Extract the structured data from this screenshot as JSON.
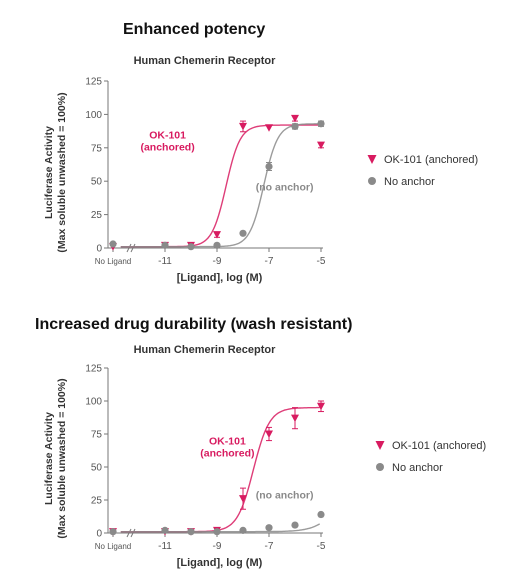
{
  "titles": {
    "top": "Enhanced potency",
    "bottom": "Increased drug durability (wash resistant)"
  },
  "chart_data": [
    {
      "type": "scatter",
      "title": "Human Chemerin Receptor",
      "xlabel": "[Ligand], log (M)",
      "ylabel_line1": "Luciferase Activity",
      "ylabel_line2": "(Max soluble unwashed = 100%)",
      "x_ticks": [
        "No Ligand",
        "-11",
        "-9",
        "-7",
        "-5"
      ],
      "y_ticks": [
        "0",
        "25",
        "50",
        "75",
        "100",
        "125"
      ],
      "ylim": [
        0,
        125
      ],
      "xlim": [
        -13,
        -5
      ],
      "grid": false,
      "legend_position": "right",
      "series": [
        {
          "name": "OK-101 (anchored)",
          "marker": "triangle-down",
          "color": "#d81b60",
          "x": [
            -13,
            -11,
            -10,
            -9,
            -8,
            -7,
            -6,
            -5
          ],
          "y": [
            1,
            2,
            2,
            10,
            91,
            90,
            97,
            77
          ],
          "yerr": [
            1,
            1,
            1,
            2,
            4,
            1,
            2,
            2
          ],
          "fit": {
            "bottom": 1,
            "top": 92,
            "logEC50": -8.65,
            "hill": 1.6
          }
        },
        {
          "name": "No anchor",
          "marker": "circle",
          "color": "#8a8a8a",
          "x": [
            -13,
            -11,
            -10,
            -9,
            -8,
            -7,
            -6,
            -5
          ],
          "y": [
            3,
            2,
            1,
            2,
            11,
            61,
            91,
            93
          ],
          "yerr": [
            1,
            1,
            1,
            1,
            1,
            3,
            2,
            2
          ],
          "fit": {
            "bottom": 1,
            "top": 93,
            "logEC50": -7.2,
            "hill": 1.6
          }
        }
      ],
      "annotations": [
        {
          "lines": [
            "OK-101",
            "(anchored)"
          ],
          "color": "#d81b60",
          "x": -10.9,
          "y": 82
        },
        {
          "lines": [
            "(no anchor)"
          ],
          "color": "#8a8a8a",
          "x": -6.4,
          "y": 43
        }
      ]
    },
    {
      "type": "scatter",
      "title": "Human Chemerin Receptor",
      "xlabel": "[Ligand], log (M)",
      "ylabel_line1": "Luciferase Activity",
      "ylabel_line2": "(Max soluble unwashed = 100%)",
      "x_ticks": [
        "No Ligand",
        "-11",
        "-9",
        "-7",
        "-5"
      ],
      "y_ticks": [
        "0",
        "25",
        "50",
        "75",
        "100",
        "125"
      ],
      "ylim": [
        0,
        125
      ],
      "xlim": [
        -13,
        -5
      ],
      "grid": false,
      "legend_position": "right",
      "series": [
        {
          "name": "OK-101 (anchored)",
          "marker": "triangle-down",
          "color": "#d81b60",
          "x": [
            -13,
            -11,
            -10,
            -9,
            -8,
            -7,
            -6,
            -5
          ],
          "y": [
            1,
            1,
            1,
            2,
            26,
            75,
            87,
            96
          ],
          "yerr": [
            1,
            1,
            1,
            1,
            8,
            5,
            8,
            4
          ],
          "fit": {
            "bottom": 1,
            "top": 95,
            "logEC50": -7.6,
            "hill": 1.4
          }
        },
        {
          "name": "No anchor",
          "marker": "circle",
          "color": "#8a8a8a",
          "x": [
            -13,
            -11,
            -10,
            -9,
            -8,
            -7,
            -6,
            -5
          ],
          "y": [
            1,
            2,
            1,
            1,
            2,
            4,
            6,
            14
          ],
          "yerr": [
            1,
            1,
            1,
            1,
            1,
            1,
            1,
            1
          ],
          "fit": {
            "bottom": 1,
            "top": 40,
            "logEC50": -4.3,
            "hill": 1.0
          }
        }
      ],
      "annotations": [
        {
          "lines": [
            "OK-101",
            "(anchored)"
          ],
          "color": "#d81b60",
          "x": -8.6,
          "y": 67
        },
        {
          "lines": [
            "(no anchor)"
          ],
          "color": "#8a8a8a",
          "x": -6.4,
          "y": 26
        }
      ]
    }
  ]
}
